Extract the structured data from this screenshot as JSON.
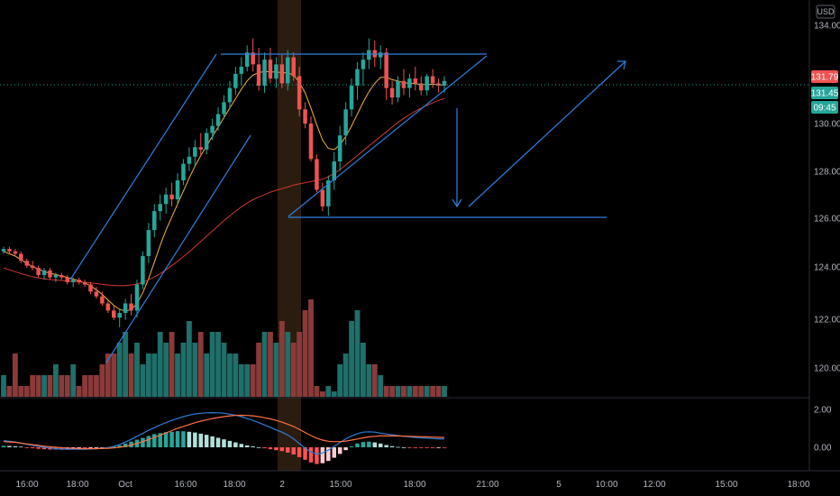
{
  "currency_label": "USD",
  "price_tags": {
    "last": "131.79",
    "ma": "131.45",
    "countdown": "09:45",
    "last_color": "#ef5350",
    "ma_color": "#26a69a",
    "countdown_color": "#26a69a"
  },
  "colors": {
    "up": "#26a69a",
    "down": "#ef5350",
    "vol_up": "#1f6f6a",
    "vol_down": "#8b3a3a",
    "ma_fast": "#f5b04a",
    "ma_slow": "#d2382f",
    "macd": "#2c7dd6",
    "signal": "#ff7043",
    "drawing": "#2f7fe0",
    "highlight": "#2b1c10"
  },
  "chart_data": [
    {
      "type": "candlestick",
      "title": "",
      "y_axis": {
        "ticks": [
          "134.00",
          "130.00",
          "128.00",
          "126.00",
          "124.00",
          "122.00",
          "120.00"
        ],
        "range": [
          119.0,
          134.5
        ]
      },
      "x_axis": {
        "ticks": [
          "16:00",
          "18:00",
          "Oct",
          "16:00",
          "18:00",
          "2",
          "15:00",
          "18:00",
          "21:00",
          "5",
          "10:00",
          "12:00",
          "15:00",
          "18:00"
        ]
      },
      "candles": [
        [
          124.6,
          124.8,
          124.5,
          124.7
        ],
        [
          124.7,
          124.8,
          124.5,
          124.6
        ],
        [
          124.6,
          124.7,
          124.4,
          124.5
        ],
        [
          124.5,
          124.6,
          124.1,
          124.2
        ],
        [
          124.2,
          124.3,
          123.9,
          124.0
        ],
        [
          124.0,
          124.2,
          123.8,
          123.9
        ],
        [
          123.9,
          124.0,
          123.5,
          123.6
        ],
        [
          123.6,
          123.9,
          123.4,
          123.8
        ],
        [
          123.8,
          123.9,
          123.4,
          123.5
        ],
        [
          123.5,
          123.7,
          123.3,
          123.6
        ],
        [
          123.6,
          123.7,
          123.4,
          123.5
        ],
        [
          123.5,
          123.6,
          123.2,
          123.3
        ],
        [
          123.3,
          123.5,
          123.1,
          123.4
        ],
        [
          123.4,
          123.5,
          123.2,
          123.3
        ],
        [
          123.3,
          123.4,
          123.1,
          123.2
        ],
        [
          123.2,
          123.3,
          122.8,
          122.9
        ],
        [
          122.9,
          123.1,
          122.6,
          122.7
        ],
        [
          122.7,
          122.9,
          122.3,
          122.4
        ],
        [
          122.4,
          122.6,
          122.0,
          122.1
        ],
        [
          122.1,
          122.3,
          121.7,
          121.8
        ],
        [
          121.8,
          122.2,
          121.4,
          122.0
        ],
        [
          122.0,
          122.6,
          121.7,
          122.4
        ],
        [
          122.4,
          122.8,
          121.9,
          122.1
        ],
        [
          122.1,
          123.4,
          121.8,
          123.2
        ],
        [
          123.2,
          124.6,
          123.0,
          124.4
        ],
        [
          124.4,
          125.8,
          124.1,
          125.5
        ],
        [
          125.5,
          126.6,
          125.2,
          126.3
        ],
        [
          126.3,
          127.0,
          125.9,
          126.6
        ],
        [
          126.6,
          127.3,
          126.2,
          127.0
        ],
        [
          127.0,
          127.5,
          126.5,
          126.8
        ],
        [
          126.8,
          127.9,
          126.6,
          127.6
        ],
        [
          127.6,
          128.5,
          127.4,
          128.3
        ],
        [
          128.3,
          129.0,
          128.0,
          128.6
        ],
        [
          128.6,
          129.3,
          128.2,
          129.0
        ],
        [
          129.0,
          129.6,
          128.6,
          128.9
        ],
        [
          128.9,
          129.8,
          128.7,
          129.6
        ],
        [
          129.6,
          130.2,
          129.3,
          129.9
        ],
        [
          129.9,
          130.7,
          129.7,
          130.4
        ],
        [
          130.4,
          131.2,
          130.2,
          130.9
        ],
        [
          130.9,
          131.8,
          130.6,
          131.5
        ],
        [
          131.5,
          132.4,
          131.2,
          132.1
        ],
        [
          132.1,
          132.8,
          131.6,
          132.4
        ],
        [
          132.4,
          133.3,
          132.2,
          133.0
        ],
        [
          133.0,
          133.6,
          132.2,
          132.5
        ],
        [
          132.5,
          133.2,
          131.4,
          131.6
        ],
        [
          131.6,
          133.0,
          131.3,
          132.7
        ],
        [
          132.7,
          133.2,
          131.7,
          131.9
        ],
        [
          131.9,
          132.8,
          131.5,
          132.5
        ],
        [
          132.5,
          132.9,
          131.5,
          131.7
        ],
        [
          131.7,
          133.1,
          131.4,
          132.8
        ],
        [
          132.8,
          133.0,
          131.8,
          132.0
        ],
        [
          132.0,
          132.4,
          130.3,
          130.6
        ],
        [
          130.6,
          130.9,
          129.8,
          130.0
        ],
        [
          130.0,
          130.3,
          128.4,
          128.5
        ],
        [
          128.5,
          128.7,
          127.1,
          127.2
        ],
        [
          127.2,
          127.5,
          126.3,
          126.5
        ],
        [
          126.5,
          127.8,
          126.1,
          127.6
        ],
        [
          127.6,
          128.8,
          127.2,
          128.4
        ],
        [
          128.4,
          129.9,
          128.0,
          129.5
        ],
        [
          129.5,
          130.9,
          129.1,
          130.6
        ],
        [
          130.6,
          131.9,
          130.3,
          131.6
        ],
        [
          131.6,
          132.6,
          131.0,
          132.3
        ],
        [
          132.3,
          133.0,
          131.6,
          132.7
        ],
        [
          132.7,
          133.6,
          132.3,
          133.1
        ],
        [
          133.1,
          133.5,
          132.4,
          132.8
        ],
        [
          132.8,
          133.3,
          132.3,
          133.0
        ],
        [
          133.0,
          133.2,
          131.0,
          131.5
        ],
        [
          131.5,
          131.8,
          130.8,
          131.1
        ],
        [
          131.1,
          132.0,
          130.9,
          131.8
        ],
        [
          131.8,
          132.3,
          131.2,
          131.5
        ],
        [
          131.5,
          132.1,
          131.1,
          131.9
        ],
        [
          131.9,
          132.4,
          131.4,
          131.7
        ],
        [
          131.7,
          132.0,
          131.2,
          131.4
        ],
        [
          131.4,
          132.1,
          131.2,
          132.0
        ],
        [
          132.0,
          132.3,
          131.5,
          131.7
        ],
        [
          131.7,
          131.9,
          131.3,
          131.6
        ],
        [
          131.6,
          132.0,
          131.3,
          131.8
        ]
      ],
      "moving_averages": [
        {
          "name": "",
          "color_key": "ma_fast",
          "values": [
            124.6,
            124.5,
            124.4,
            124.25,
            124.1,
            123.95,
            123.85,
            123.75,
            123.68,
            123.62,
            123.56,
            123.5,
            123.43,
            123.36,
            123.27,
            123.14,
            122.98,
            122.78,
            122.55,
            122.32,
            122.15,
            122.08,
            122.14,
            122.4,
            122.85,
            123.45,
            124.15,
            124.85,
            125.5,
            126.05,
            126.6,
            127.15,
            127.7,
            128.2,
            128.65,
            129.05,
            129.45,
            129.85,
            130.25,
            130.65,
            131.05,
            131.45,
            131.8,
            132.05,
            132.15,
            132.2,
            132.18,
            132.18,
            132.15,
            132.15,
            132.05,
            131.75,
            131.3,
            130.65,
            129.95,
            129.3,
            128.95,
            128.9,
            129.1,
            129.45,
            129.9,
            130.4,
            130.9,
            131.35,
            131.7,
            131.95,
            131.95,
            131.85,
            131.8,
            131.72,
            131.7,
            131.68,
            131.65,
            131.65,
            131.66,
            131.64,
            131.62
          ]
        },
        {
          "name": "",
          "color_key": "ma_slow",
          "values": [
            123.9,
            123.82,
            123.74,
            123.66,
            123.59,
            123.53,
            123.48,
            123.44,
            123.41,
            123.39,
            123.37,
            123.35,
            123.33,
            123.31,
            123.29,
            123.27,
            123.24,
            123.21,
            123.18,
            123.16,
            123.15,
            123.15,
            123.18,
            123.22,
            123.3,
            123.4,
            123.52,
            123.66,
            123.82,
            124.0,
            124.18,
            124.38,
            124.58,
            124.8,
            125.02,
            125.24,
            125.46,
            125.68,
            125.9,
            126.1,
            126.3,
            126.48,
            126.64,
            126.78,
            126.9,
            127.0,
            127.1,
            127.18,
            127.25,
            127.32,
            127.4,
            127.45,
            127.5,
            127.55,
            127.6,
            127.65,
            127.75,
            127.9,
            128.05,
            128.25,
            128.45,
            128.65,
            128.85,
            129.05,
            129.25,
            129.45,
            129.65,
            129.85,
            130.05,
            130.22,
            130.38,
            130.52,
            130.65,
            130.77,
            130.88,
            130.98,
            131.05
          ]
        }
      ],
      "volume": [
        2,
        1,
        4,
        1,
        1,
        2,
        2,
        2,
        2,
        3,
        2,
        2,
        3,
        1,
        2,
        2,
        2,
        3,
        4,
        4,
        5,
        6,
        4,
        5,
        3,
        4,
        4,
        6,
        5,
        6,
        4,
        5,
        7,
        5,
        6,
        4,
        6,
        6,
        5,
        4,
        4,
        3,
        3,
        3,
        5,
        6,
        6,
        5,
        7,
        6,
        5,
        6,
        8,
        9,
        1,
        0.5,
        1,
        0.5,
        3,
        4,
        7,
        8,
        5,
        3,
        3,
        2,
        1,
        1,
        1,
        1,
        1,
        1,
        1,
        1,
        1,
        1,
        1
      ],
      "volume_max": 9
    },
    {
      "type": "macd",
      "y_axis": {
        "ticks": [
          "2.00",
          "0.00"
        ],
        "range": [
          -1.0,
          2.8
        ]
      },
      "histogram": [
        0.08,
        0.07,
        0.05,
        0.03,
        -0.02,
        -0.05,
        -0.08,
        -0.1,
        -0.12,
        -0.12,
        -0.13,
        -0.12,
        -0.1,
        -0.08,
        -0.08,
        -0.06,
        -0.05,
        -0.03,
        0.0,
        0.04,
        0.1,
        0.2,
        0.3,
        0.4,
        0.5,
        0.6,
        0.7,
        0.75,
        0.8,
        0.82,
        0.85,
        0.85,
        0.82,
        0.78,
        0.72,
        0.66,
        0.58,
        0.5,
        0.42,
        0.34,
        0.26,
        0.18,
        0.1,
        0.05,
        0.0,
        -0.05,
        -0.1,
        -0.15,
        -0.2,
        -0.28,
        -0.38,
        -0.52,
        -0.66,
        -0.8,
        -0.88,
        -0.84,
        -0.72,
        -0.55,
        -0.35,
        -0.15,
        0.05,
        0.2,
        0.28,
        0.3,
        0.26,
        0.2,
        0.12,
        0.06,
        0.02,
        0.0,
        -0.02,
        -0.02,
        -0.03,
        -0.03,
        -0.03,
        -0.02,
        -0.02
      ],
      "macd": [
        0.35,
        0.32,
        0.28,
        0.22,
        0.16,
        0.1,
        0.05,
        0.0,
        -0.04,
        -0.07,
        -0.09,
        -0.1,
        -0.1,
        -0.1,
        -0.1,
        -0.09,
        -0.08,
        -0.05,
        -0.02,
        0.05,
        0.15,
        0.28,
        0.42,
        0.58,
        0.74,
        0.9,
        1.04,
        1.18,
        1.3,
        1.42,
        1.52,
        1.62,
        1.7,
        1.76,
        1.8,
        1.82,
        1.83,
        1.82,
        1.8,
        1.75,
        1.7,
        1.62,
        1.52,
        1.42,
        1.3,
        1.18,
        1.05,
        0.92,
        0.8,
        0.65,
        0.45,
        0.2,
        -0.05,
        -0.25,
        -0.35,
        -0.3,
        -0.15,
        0.05,
        0.25,
        0.45,
        0.6,
        0.72,
        0.8,
        0.82,
        0.8,
        0.75,
        0.7,
        0.66,
        0.62,
        0.58,
        0.55,
        0.52,
        0.5,
        0.48,
        0.46,
        0.45,
        0.44
      ],
      "signal": [
        0.3,
        0.28,
        0.26,
        0.22,
        0.18,
        0.14,
        0.1,
        0.06,
        0.03,
        0.0,
        -0.02,
        -0.04,
        -0.05,
        -0.06,
        -0.07,
        -0.07,
        -0.07,
        -0.06,
        -0.05,
        -0.03,
        0.0,
        0.05,
        0.12,
        0.2,
        0.3,
        0.4,
        0.52,
        0.64,
        0.76,
        0.88,
        1.0,
        1.1,
        1.2,
        1.3,
        1.38,
        1.45,
        1.52,
        1.57,
        1.62,
        1.66,
        1.68,
        1.69,
        1.68,
        1.66,
        1.62,
        1.56,
        1.5,
        1.42,
        1.33,
        1.22,
        1.1,
        0.95,
        0.78,
        0.62,
        0.48,
        0.38,
        0.32,
        0.3,
        0.3,
        0.33,
        0.38,
        0.44,
        0.5,
        0.55,
        0.58,
        0.6,
        0.6,
        0.6,
        0.6,
        0.59,
        0.58,
        0.57,
        0.56,
        0.55,
        0.54,
        0.53,
        0.52
      ]
    }
  ]
}
